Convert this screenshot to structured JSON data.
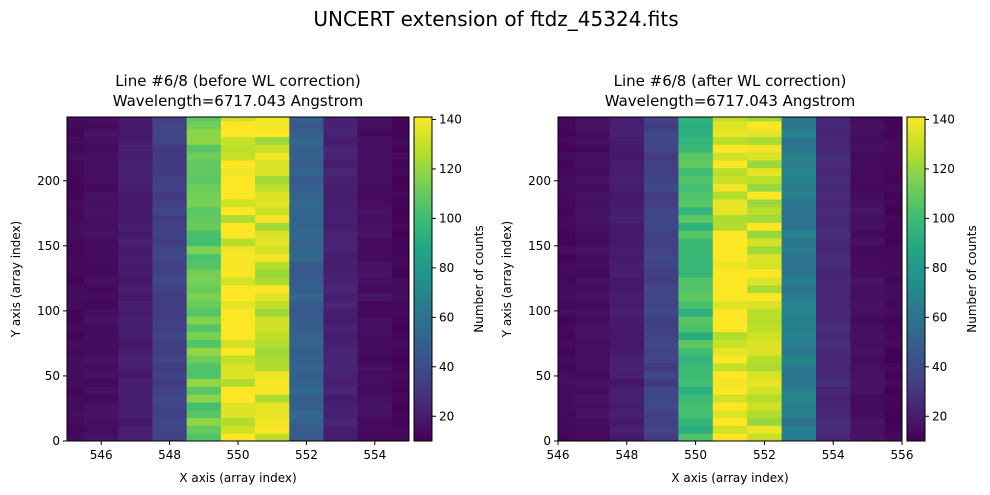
{
  "suptitle": "UNCERT extension of ftdz_45324.fits",
  "chart_data": [
    {
      "type": "heatmap",
      "title": [
        "Line #6/8 (before WL correction)",
        "Wavelength=6717.043 Angstrom"
      ],
      "xlabel": "X axis (array index)",
      "ylabel": "Y axis (array index)",
      "xlim": [
        545,
        555
      ],
      "ylim": [
        0,
        249
      ],
      "xticks": [
        546,
        548,
        550,
        552,
        554
      ],
      "yticks": [
        0,
        50,
        100,
        150,
        200
      ],
      "colorbar": {
        "label": "Number of counts",
        "range": [
          10,
          141
        ],
        "ticks": [
          20,
          40,
          60,
          80,
          100,
          120,
          140
        ],
        "colormap": "viridis"
      },
      "columns": [
        {
          "x_center": 545,
          "value": 13
        },
        {
          "x_center": 546,
          "value": 15
        },
        {
          "x_center": 547,
          "value": 20
        },
        {
          "x_center": 548,
          "value": 35
        },
        {
          "x_center": 549,
          "value": 110
        },
        {
          "x_center": 550,
          "value": 137
        },
        {
          "x_center": 551,
          "value": 132
        },
        {
          "x_center": 552,
          "value": 50
        },
        {
          "x_center": 553,
          "value": 22
        },
        {
          "x_center": 554,
          "value": 15
        },
        {
          "x_center": 555,
          "value": 12
        }
      ]
    },
    {
      "type": "heatmap",
      "title": [
        "Line #6/8 (after WL correction)",
        "Wavelength=6717.043 Angstrom"
      ],
      "xlabel": "X axis (array index)",
      "ylabel": "Y axis (array index)",
      "xlim": [
        546,
        556
      ],
      "ylim": [
        0,
        249
      ],
      "xticks": [
        546,
        548,
        550,
        552,
        554,
        556
      ],
      "yticks": [
        0,
        50,
        100,
        150,
        200
      ],
      "colorbar": {
        "label": "Number of counts",
        "range": [
          10,
          141
        ],
        "ticks": [
          20,
          40,
          60,
          80,
          100,
          120,
          140
        ],
        "colormap": "viridis"
      },
      "columns": [
        {
          "x_center": 546,
          "value": 13
        },
        {
          "x_center": 547,
          "value": 15
        },
        {
          "x_center": 548,
          "value": 20
        },
        {
          "x_center": 549,
          "value": 35
        },
        {
          "x_center": 550,
          "value": 100
        },
        {
          "x_center": 551,
          "value": 137
        },
        {
          "x_center": 552,
          "value": 132
        },
        {
          "x_center": 553,
          "value": 65
        },
        {
          "x_center": 554,
          "value": 25
        },
        {
          "x_center": 555,
          "value": 15
        },
        {
          "x_center": 556,
          "value": 12
        }
      ]
    }
  ]
}
